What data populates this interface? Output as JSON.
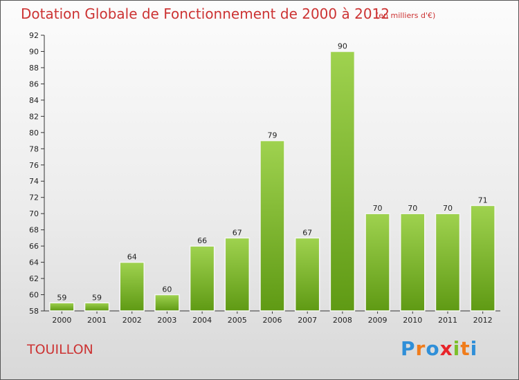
{
  "chart_data": {
    "type": "bar",
    "title": "Dotation Globale de Fonctionnement de 2000 à 2012",
    "subtitle": "(en milliers d'€)",
    "categories": [
      "2000",
      "2001",
      "2002",
      "2003",
      "2004",
      "2005",
      "2006",
      "2007",
      "2008",
      "2009",
      "2010",
      "2011",
      "2012"
    ],
    "values": [
      59,
      59,
      64,
      60,
      66,
      67,
      79,
      67,
      90,
      70,
      70,
      70,
      71
    ],
    "ylim": [
      58,
      92
    ],
    "yticks": [
      58,
      60,
      62,
      64,
      66,
      68,
      70,
      72,
      74,
      76,
      78,
      80,
      82,
      84,
      86,
      88,
      90,
      92
    ],
    "grid": false,
    "colors": {
      "bar_top": "#9fd24f",
      "bar_bottom": "#5f9a14",
      "text": "#cc3333"
    }
  },
  "footer": {
    "commune": "TOUILLON",
    "logo": [
      "P",
      "r",
      "o",
      "x",
      "i",
      "t",
      "i"
    ],
    "logo_colors": [
      "#2f8fd8",
      "#f07c1b",
      "#2f8fd8",
      "#e8242a",
      "#7cbf2a",
      "#f07c1b",
      "#2f8fd8"
    ]
  }
}
